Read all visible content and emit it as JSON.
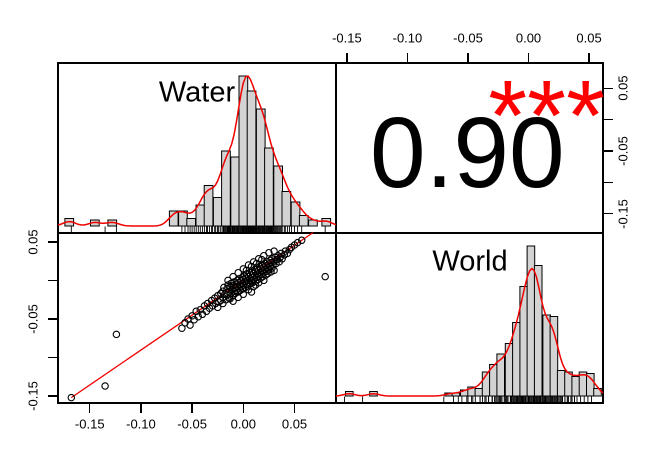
{
  "figure": {
    "colors": {
      "background": "#ffffff",
      "line_red": "#f00000",
      "star_red": "#ff0000",
      "bar_fill": "#d3d3d3",
      "bar_stroke": "#000000",
      "axis_black": "#000000"
    }
  },
  "chart_data": {
    "type": "scatterplot-matrix",
    "variables": [
      "Water",
      "World"
    ],
    "correlation": {
      "value_label": "0.90",
      "significance": "***"
    },
    "axis": {
      "water_range": [
        -0.181,
        0.0905
      ],
      "world_range": [
        -0.159,
        0.0615
      ],
      "x_ticks": [
        {
          "v": -0.15,
          "label": "-0.15"
        },
        {
          "v": -0.1,
          "label": "-0.10"
        },
        {
          "v": -0.05,
          "label": "-0.05"
        },
        {
          "v": 0.0,
          "label": "0.00"
        },
        {
          "v": 0.05,
          "label": "0.05"
        }
      ],
      "y_ticks": [
        {
          "v": 0.05,
          "label": "0.05"
        },
        {
          "v": 0.0,
          "label": ""
        },
        {
          "v": -0.05,
          "label": "-0.05"
        },
        {
          "v": -0.1,
          "label": ""
        },
        {
          "v": -0.15,
          "label": "-0.15"
        }
      ]
    },
    "water_hist": {
      "title": "Water",
      "bin_width": 0.0085,
      "curve_scale": 1.0,
      "bars": [
        [
          -0.17,
          0.05
        ],
        [
          -0.145,
          0.04
        ],
        [
          -0.128,
          0.04
        ],
        [
          -0.068,
          0.1
        ],
        [
          -0.059,
          0.1
        ],
        [
          -0.051,
          0.05
        ],
        [
          -0.042,
          0.14
        ],
        [
          -0.034,
          0.27
        ],
        [
          -0.025,
          0.19
        ],
        [
          -0.017,
          0.5
        ],
        [
          -0.008,
          0.46
        ],
        [
          0.0,
          1.0
        ],
        [
          0.008,
          0.9
        ],
        [
          0.017,
          0.78
        ],
        [
          0.025,
          0.52
        ],
        [
          0.034,
          0.4
        ],
        [
          0.042,
          0.23
        ],
        [
          0.051,
          0.16
        ],
        [
          0.059,
          0.07
        ],
        [
          0.068,
          0.04
        ],
        [
          0.081,
          0.05
        ]
      ]
    },
    "world_hist": {
      "title": "World",
      "bin_width": 0.0063,
      "curve_scale": 0.85,
      "bars": [
        [
          -0.148,
          0.03
        ],
        [
          -0.128,
          0.03
        ],
        [
          -0.066,
          0.02
        ],
        [
          -0.06,
          0.02
        ],
        [
          -0.053,
          0.04
        ],
        [
          -0.047,
          0.06
        ],
        [
          -0.041,
          0.05
        ],
        [
          -0.035,
          0.16
        ],
        [
          -0.029,
          0.21
        ],
        [
          -0.023,
          0.28
        ],
        [
          -0.016,
          0.35
        ],
        [
          -0.01,
          0.49
        ],
        [
          -0.004,
          0.73
        ],
        [
          0.002,
          1.0
        ],
        [
          0.008,
          0.87
        ],
        [
          0.015,
          0.54
        ],
        [
          0.021,
          0.53
        ],
        [
          0.027,
          0.17
        ],
        [
          0.033,
          0.16
        ],
        [
          0.039,
          0.13
        ],
        [
          0.045,
          0.16
        ],
        [
          0.051,
          0.15
        ],
        [
          0.057,
          0.05
        ]
      ]
    },
    "scatter": {
      "fit_line": {
        "x1": -0.168,
        "y1": -0.152,
        "x2": 0.068,
        "y2": 0.062
      },
      "points": [
        [
          -0.168,
          -0.152
        ],
        [
          -0.135,
          -0.137
        ],
        [
          -0.124,
          -0.07
        ],
        [
          0.08,
          0.005
        ],
        [
          -0.06,
          -0.062
        ],
        [
          -0.057,
          -0.055
        ],
        [
          -0.054,
          -0.05
        ],
        [
          -0.052,
          -0.058
        ],
        [
          -0.05,
          -0.046
        ],
        [
          -0.048,
          -0.051
        ],
        [
          -0.046,
          -0.04
        ],
        [
          -0.044,
          -0.047
        ],
        [
          -0.042,
          -0.038
        ],
        [
          -0.04,
          -0.044
        ],
        [
          -0.038,
          -0.033
        ],
        [
          -0.036,
          -0.04
        ],
        [
          -0.035,
          -0.03
        ],
        [
          -0.033,
          -0.036
        ],
        [
          -0.031,
          -0.026
        ],
        [
          -0.03,
          -0.033
        ],
        [
          -0.028,
          -0.023
        ],
        [
          -0.027,
          -0.03
        ],
        [
          -0.025,
          -0.02
        ],
        [
          -0.024,
          -0.028
        ],
        [
          -0.022,
          -0.017
        ],
        [
          -0.022,
          -0.026
        ],
        [
          -0.02,
          -0.014
        ],
        [
          -0.02,
          -0.022
        ],
        [
          -0.019,
          -0.009
        ],
        [
          -0.018,
          -0.018
        ],
        [
          -0.017,
          -0.025
        ],
        [
          -0.016,
          -0.011
        ],
        [
          -0.016,
          -0.019
        ],
        [
          -0.015,
          -0.006
        ],
        [
          -0.014,
          -0.015
        ],
        [
          -0.014,
          -0.023
        ],
        [
          -0.013,
          -0.009
        ],
        [
          -0.012,
          -0.017
        ],
        [
          -0.012,
          -0.004
        ],
        [
          -0.011,
          -0.012
        ],
        [
          -0.01,
          -0.02
        ],
        [
          -0.01,
          -0.007
        ],
        [
          -0.009,
          -0.014
        ],
        [
          -0.009,
          -0.002
        ],
        [
          -0.008,
          -0.01
        ],
        [
          -0.008,
          -0.017
        ],
        [
          -0.007,
          -0.005
        ],
        [
          -0.007,
          -0.013
        ],
        [
          -0.006,
          0.0
        ],
        [
          -0.006,
          -0.008
        ],
        [
          -0.005,
          -0.015
        ],
        [
          -0.005,
          -0.003
        ],
        [
          -0.004,
          -0.01
        ],
        [
          -0.004,
          0.002
        ],
        [
          -0.003,
          -0.006
        ],
        [
          -0.003,
          -0.013
        ],
        [
          -0.002,
          0.0
        ],
        [
          -0.002,
          -0.008
        ],
        [
          -0.001,
          0.004
        ],
        [
          -0.001,
          -0.004
        ],
        [
          0.0,
          -0.011
        ],
        [
          0.0,
          0.001
        ],
        [
          0.0,
          -0.006
        ],
        [
          0.001,
          0.006
        ],
        [
          0.001,
          -0.002
        ],
        [
          0.002,
          -0.009
        ],
        [
          0.002,
          0.003
        ],
        [
          0.003,
          -0.005
        ],
        [
          0.003,
          0.008
        ],
        [
          0.004,
          0.0
        ],
        [
          0.004,
          -0.007
        ],
        [
          0.005,
          0.005
        ],
        [
          0.005,
          -0.002
        ],
        [
          0.006,
          0.01
        ],
        [
          0.006,
          0.002
        ],
        [
          0.007,
          -0.004
        ],
        [
          0.007,
          0.007
        ],
        [
          0.008,
          0.0
        ],
        [
          0.008,
          0.012
        ],
        [
          0.009,
          0.004
        ],
        [
          0.009,
          -0.003
        ],
        [
          0.01,
          0.009
        ],
        [
          0.01,
          0.001
        ],
        [
          0.011,
          0.014
        ],
        [
          0.011,
          0.006
        ],
        [
          0.012,
          -0.001
        ],
        [
          0.012,
          0.011
        ],
        [
          0.013,
          0.004
        ],
        [
          0.013,
          0.016
        ],
        [
          0.014,
          0.008
        ],
        [
          0.014,
          0.001
        ],
        [
          0.015,
          0.013
        ],
        [
          0.015,
          0.006
        ],
        [
          0.016,
          0.018
        ],
        [
          0.016,
          0.01
        ],
        [
          0.017,
          0.003
        ],
        [
          0.017,
          0.015
        ],
        [
          0.018,
          0.008
        ],
        [
          0.018,
          0.02
        ],
        [
          0.019,
          0.012
        ],
        [
          0.019,
          0.005
        ],
        [
          0.02,
          0.017
        ],
        [
          0.02,
          0.01
        ],
        [
          0.021,
          0.022
        ],
        [
          0.021,
          0.014
        ],
        [
          0.022,
          0.007
        ],
        [
          0.022,
          0.019
        ],
        [
          0.023,
          0.012
        ],
        [
          0.023,
          0.024
        ],
        [
          0.024,
          0.016
        ],
        [
          0.024,
          0.009
        ],
        [
          0.025,
          0.021
        ],
        [
          0.025,
          0.014
        ],
        [
          0.026,
          0.026
        ],
        [
          0.026,
          0.018
        ],
        [
          0.027,
          0.011
        ],
        [
          0.027,
          0.023
        ],
        [
          0.028,
          0.016
        ],
        [
          0.028,
          0.028
        ],
        [
          0.029,
          0.02
        ],
        [
          0.03,
          0.025
        ],
        [
          0.03,
          0.013
        ],
        [
          0.031,
          0.03
        ],
        [
          0.032,
          0.022
        ],
        [
          0.033,
          0.027
        ],
        [
          0.034,
          0.032
        ],
        [
          0.035,
          0.024
        ],
        [
          0.036,
          0.03
        ],
        [
          0.037,
          0.035
        ],
        [
          0.038,
          0.028
        ],
        [
          0.04,
          0.033
        ],
        [
          0.041,
          0.038
        ],
        [
          0.043,
          0.035
        ],
        [
          0.045,
          0.04
        ],
        [
          0.047,
          0.043
        ],
        [
          0.05,
          0.046
        ],
        [
          0.053,
          0.049
        ],
        [
          0.057,
          0.052
        ],
        [
          0.0,
          0.015
        ],
        [
          0.005,
          0.02
        ],
        [
          0.01,
          0.024
        ],
        [
          -0.005,
          0.01
        ],
        [
          0.015,
          0.028
        ],
        [
          0.02,
          0.032
        ],
        [
          -0.01,
          0.005
        ],
        [
          0.025,
          0.036
        ],
        [
          0.008,
          0.018
        ],
        [
          -0.015,
          0.0
        ],
        [
          0.003,
          0.013
        ],
        [
          0.03,
          0.038
        ],
        [
          0.013,
          0.022
        ],
        [
          0.018,
          0.027
        ],
        [
          0.0,
          -0.018
        ],
        [
          -0.005,
          -0.022
        ],
        [
          0.005,
          -0.012
        ],
        [
          0.01,
          -0.008
        ],
        [
          -0.01,
          -0.027
        ],
        [
          0.015,
          -0.003
        ],
        [
          -0.02,
          -0.03
        ],
        [
          0.008,
          -0.015
        ],
        [
          -0.013,
          -0.024
        ],
        [
          0.02,
          0.0
        ],
        [
          -0.025,
          -0.035
        ],
        [
          0.012,
          -0.006
        ]
      ]
    }
  }
}
